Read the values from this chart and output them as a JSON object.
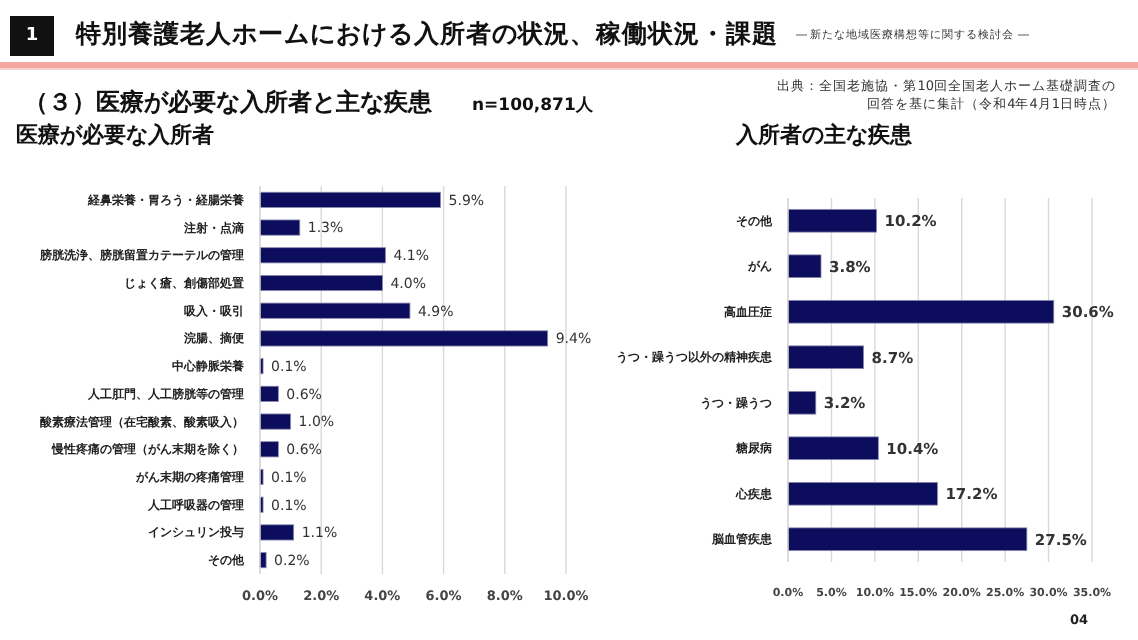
{
  "chart_data": [
    {
      "type": "bar",
      "orientation": "horizontal",
      "title": "医療が必要な入所者",
      "categories": [
        "経鼻栄養・胃ろう・経腸栄養",
        "注射・点滴",
        "膀胱洗浄、膀胱留置カテーテルの管理",
        "じょく瘡、創傷部処置",
        "吸入・吸引",
        "浣腸、摘便",
        "中心静脈栄養",
        "人工肛門、人工膀胱等の管理",
        "酸素療法管理（在宅酸素、酸素吸入）",
        "慢性疼痛の管理（がん末期を除く）",
        "がん末期の疼痛管理",
        "人工呼吸器の管理",
        "インシュリン投与",
        "その他"
      ],
      "values": [
        5.9,
        1.3,
        4.1,
        4.0,
        4.9,
        9.4,
        0.1,
        0.6,
        1.0,
        0.6,
        0.1,
        0.1,
        1.1,
        0.2
      ],
      "value_labels": [
        "5.9%",
        "1.3%",
        "4.1%",
        "4.0%",
        "4.9%",
        "9.4%",
        "0.1%",
        "0.6%",
        "1.0%",
        "0.6%",
        "0.1%",
        "0.1%",
        "1.1%",
        "0.2%"
      ],
      "color": "#0d0d5e",
      "xlim": [
        0,
        10
      ],
      "xticks": [
        {
          "value": 0,
          "label": "0.0%"
        },
        {
          "value": 2,
          "label": "2.0%"
        },
        {
          "value": 4,
          "label": "4.0%"
        },
        {
          "value": 6,
          "label": "6.0%"
        },
        {
          "value": 8,
          "label": "8.0%"
        },
        {
          "value": 10,
          "label": "10.0%"
        }
      ],
      "grid": "x",
      "annotations": [
        "1",
        "特別養護老人ホームにおける入所者の状況、稼働状況・課題",
        "― 新たな地域医療構想等に関する検討会 ―",
        "（３）医療が必要な入所者と主な疾患",
        "n=100,871人",
        "出典：全国老施協・第10回全国老人ホーム基礎調査の回答を基に集計（令和4年4月1日時点）",
        "04"
      ]
    },
    {
      "type": "bar",
      "orientation": "horizontal",
      "title": "入所者の主な疾患",
      "categories": [
        "その他",
        "がん",
        "高血圧症",
        "うつ・躁うつ以外の精神疾患",
        "うつ・躁うつ",
        "糖尿病",
        "心疾患",
        "脳血管疾患"
      ],
      "values": [
        10.2,
        3.8,
        30.6,
        8.7,
        3.2,
        10.4,
        17.2,
        27.5
      ],
      "value_labels": [
        "10.2%",
        "3.8%",
        "30.6%",
        "8.7%",
        "3.2%",
        "10.4%",
        "17.2%",
        "27.5%"
      ],
      "color": "#0d0d5e",
      "xlim": [
        0,
        35
      ],
      "xticks": [
        {
          "value": 0,
          "label": "0.0%"
        },
        {
          "value": 5,
          "label": "5.0%"
        },
        {
          "value": 10,
          "label": "10.0%"
        },
        {
          "value": 15,
          "label": "15.0%"
        },
        {
          "value": 20,
          "label": "20.0%"
        },
        {
          "value": 25,
          "label": "25.0%"
        },
        {
          "value": 30,
          "label": "30.0%"
        },
        {
          "value": 35,
          "label": "35.0%"
        }
      ],
      "grid": "x"
    }
  ]
}
